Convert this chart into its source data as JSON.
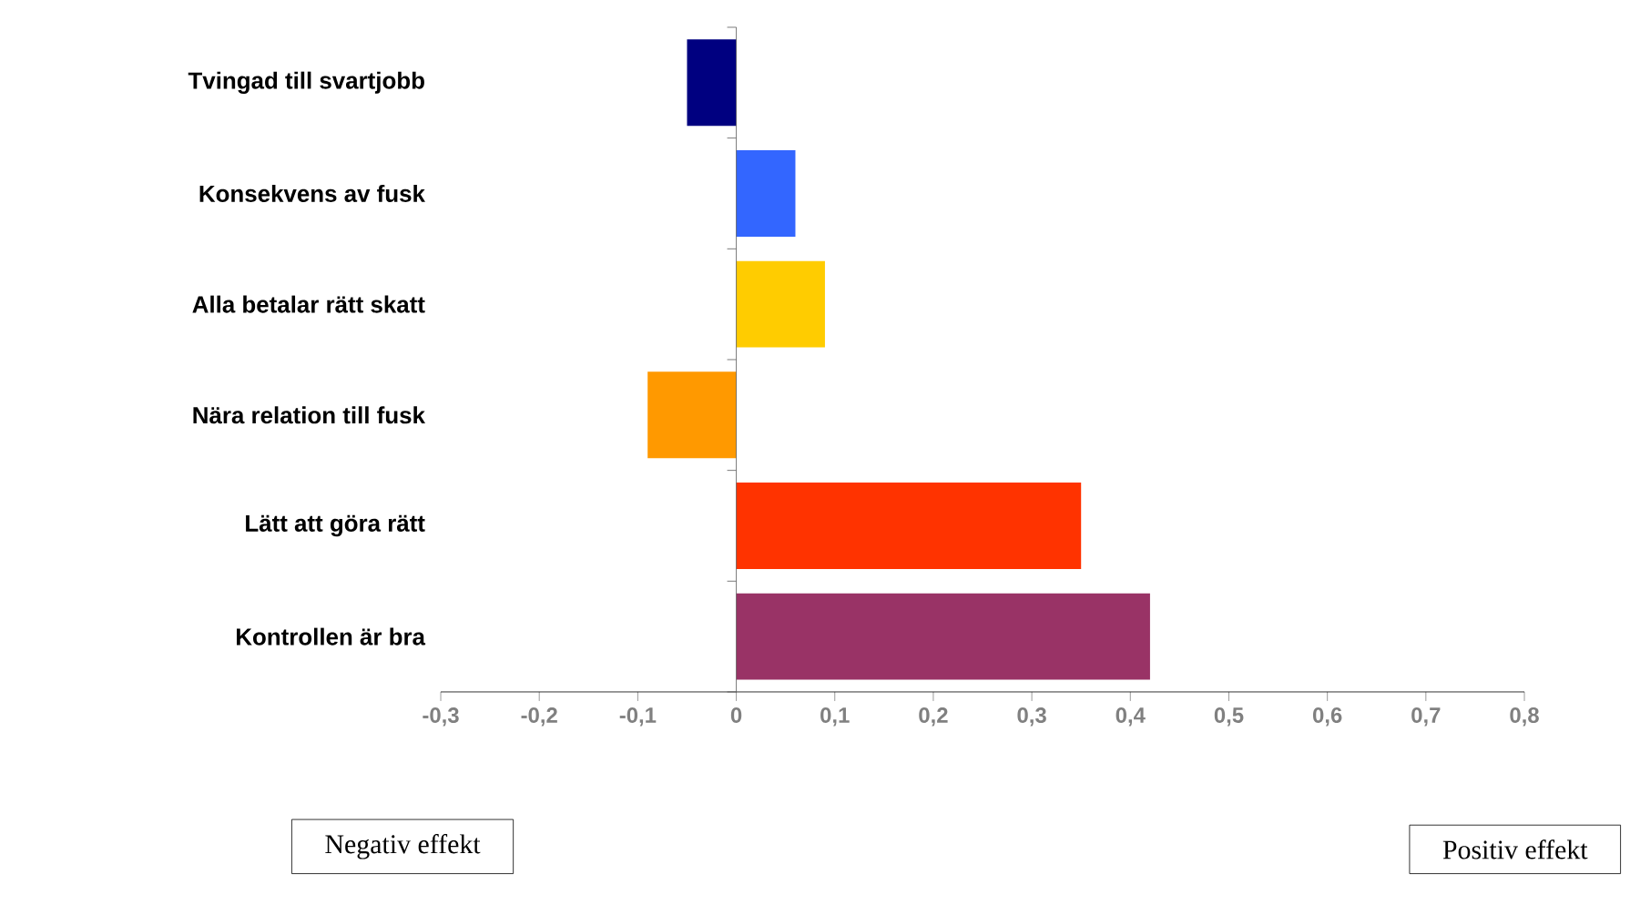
{
  "chart_data": {
    "type": "bar",
    "orientation": "horizontal",
    "categories": [
      "Tvingad till svartjobb",
      "Konsekvens av fusk",
      "Alla betalar rätt skatt",
      "Nära relation till fusk",
      "Lätt att göra rätt",
      "Kontrollen är bra"
    ],
    "values": [
      -0.05,
      0.06,
      0.09,
      -0.09,
      0.35,
      0.42
    ],
    "colors": [
      "#000080",
      "#3366ff",
      "#ffcc00",
      "#ff9900",
      "#ff3300",
      "#993366"
    ],
    "xlim": [
      -0.3,
      0.8
    ],
    "xticks": [
      {
        "value": -0.3,
        "label": "-0,3"
      },
      {
        "value": -0.2,
        "label": "-0,2"
      },
      {
        "value": -0.1,
        "label": "-0,1"
      },
      {
        "value": 0,
        "label": "0"
      },
      {
        "value": 0.1,
        "label": "0,1"
      },
      {
        "value": 0.2,
        "label": "0,2"
      },
      {
        "value": 0.3,
        "label": "0,3"
      },
      {
        "value": 0.4,
        "label": "0,4"
      },
      {
        "value": 0.5,
        "label": "0,5"
      },
      {
        "value": 0.6,
        "label": "0,6"
      },
      {
        "value": 0.7,
        "label": "0,7"
      },
      {
        "value": 0.8,
        "label": "0,8"
      }
    ],
    "annotations": [
      "Negativ effekt",
      "Positiv effekt"
    ]
  }
}
